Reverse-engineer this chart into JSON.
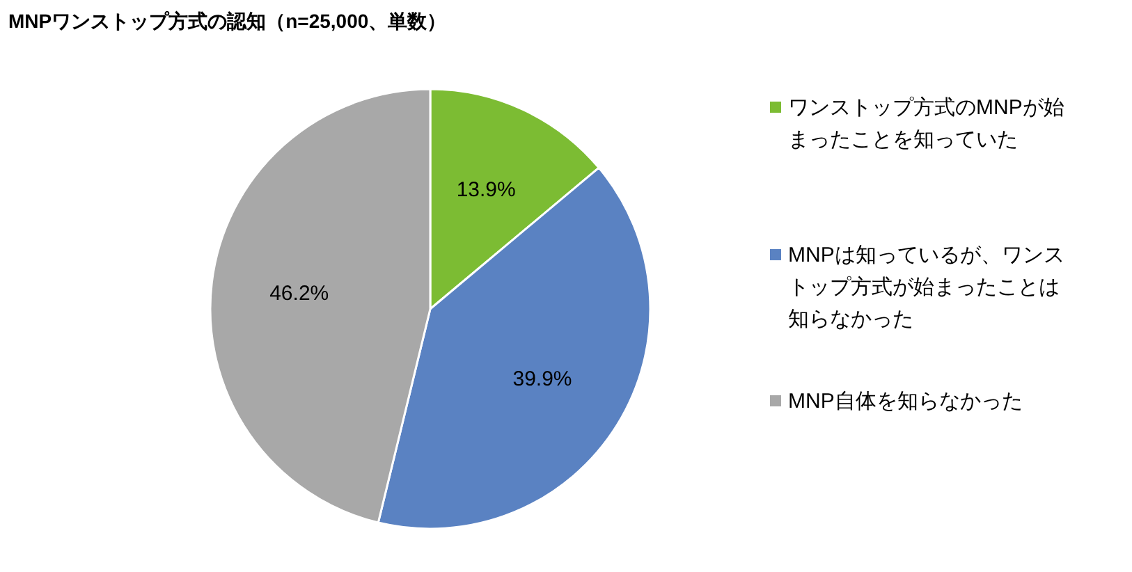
{
  "chart_data": {
    "type": "pie",
    "title": "MNPワンストップ方式の認知（n=25,000、単数）",
    "categories": [
      "ワンストップ方式のMNPが始まったことを知っていた",
      "MNPは知っているが、ワンストップ方式が始まったことは知らなかった",
      "MNP自体を知らなかった"
    ],
    "values": [
      13.9,
      39.9,
      46.2
    ],
    "colors": [
      "#7cbc33",
      "#5a82c2",
      "#a8a8a8"
    ],
    "value_labels": [
      "13.9%",
      "39.9%",
      "46.2%"
    ],
    "legend": "right"
  }
}
